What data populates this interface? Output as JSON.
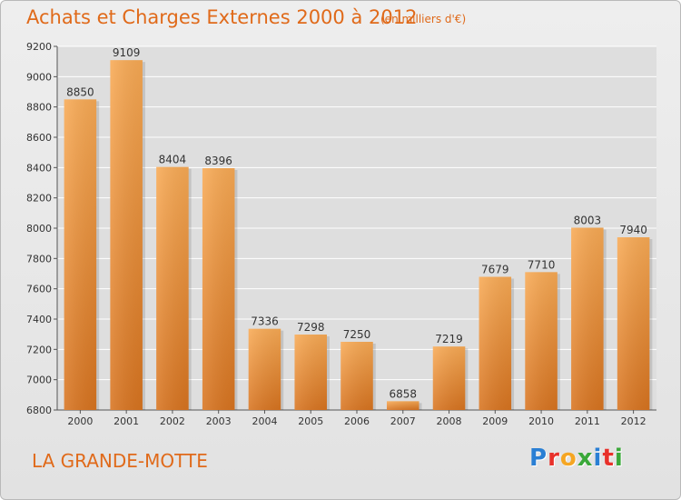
{
  "title": "Achats et Charges Externes 2000 à 2012",
  "subtitle": "(en milliers d'€)",
  "commune": "LA GRANDE-MOTTE",
  "logo": {
    "letters": [
      "P",
      "r",
      "o",
      "x",
      "i",
      "t",
      "i"
    ],
    "colors": [
      "#2a7fd4",
      "#e8312b",
      "#f5a623",
      "#3aa839",
      "#2a7fd4",
      "#e8312b",
      "#3aa839"
    ]
  },
  "colors": {
    "bar_top": "#f8aa55",
    "bar_bottom": "#d87420",
    "title": "#e06a1a",
    "grid": "#ffffff"
  },
  "chart_data": {
    "type": "bar",
    "title": "Achats et Charges Externes 2000 à 2012",
    "subtitle": "(en milliers d'€)",
    "xlabel": "",
    "ylabel": "",
    "categories": [
      "2000",
      "2001",
      "2002",
      "2003",
      "2004",
      "2005",
      "2006",
      "2007",
      "2008",
      "2009",
      "2010",
      "2011",
      "2012"
    ],
    "values": [
      8850,
      9109,
      8404,
      8396,
      7336,
      7298,
      7250,
      6858,
      7219,
      7679,
      7710,
      8003,
      7940
    ],
    "ylim": [
      6800,
      9200
    ],
    "yticks": [
      6800,
      7000,
      7200,
      7400,
      7600,
      7800,
      8000,
      8200,
      8400,
      8600,
      8800,
      9000,
      9200
    ],
    "grid": true,
    "show_value_labels": true
  }
}
